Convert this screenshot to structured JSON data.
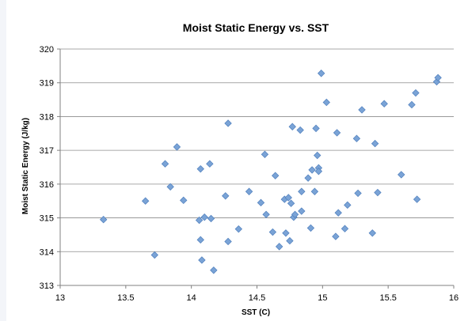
{
  "chart_data": {
    "type": "scatter",
    "title": "Moist Static Energy vs. SST",
    "xlabel": "SST (C)",
    "ylabel": "Moist Static Energy (J/kg)",
    "xlim": [
      13,
      16
    ],
    "ylim": [
      313,
      320
    ],
    "xticks": [
      "13",
      "13.5",
      "14",
      "14.5",
      "15",
      "15.5",
      "16"
    ],
    "yticks": [
      "313",
      "314",
      "315",
      "316",
      "317",
      "318",
      "319",
      "320"
    ],
    "grid": "horizontal",
    "legend": "none",
    "marker": "diamond",
    "marker_color": "#7aa3d6",
    "points": [
      [
        13.33,
        314.95
      ],
      [
        13.65,
        315.5
      ],
      [
        13.72,
        313.9
      ],
      [
        13.8,
        316.6
      ],
      [
        13.84,
        315.92
      ],
      [
        13.89,
        317.1
      ],
      [
        13.94,
        315.52
      ],
      [
        14.06,
        314.93
      ],
      [
        14.07,
        316.45
      ],
      [
        14.07,
        314.35
      ],
      [
        14.08,
        313.75
      ],
      [
        14.1,
        315.02
      ],
      [
        14.14,
        316.6
      ],
      [
        14.15,
        314.98
      ],
      [
        14.17,
        313.45
      ],
      [
        14.26,
        315.65
      ],
      [
        14.28,
        317.8
      ],
      [
        14.28,
        314.3
      ],
      [
        14.36,
        314.67
      ],
      [
        14.44,
        315.78
      ],
      [
        14.53,
        315.45
      ],
      [
        14.56,
        316.88
      ],
      [
        14.57,
        315.1
      ],
      [
        14.62,
        314.58
      ],
      [
        14.64,
        316.25
      ],
      [
        14.67,
        314.15
      ],
      [
        14.71,
        315.55
      ],
      [
        14.72,
        314.55
      ],
      [
        14.74,
        315.6
      ],
      [
        14.75,
        314.32
      ],
      [
        14.76,
        315.43
      ],
      [
        14.77,
        317.7
      ],
      [
        14.78,
        315.02
      ],
      [
        14.79,
        315.1
      ],
      [
        14.83,
        317.6
      ],
      [
        14.84,
        315.2
      ],
      [
        14.84,
        315.78
      ],
      [
        14.89,
        316.18
      ],
      [
        14.91,
        314.7
      ],
      [
        14.92,
        316.42
      ],
      [
        14.94,
        315.78
      ],
      [
        14.95,
        317.65
      ],
      [
        14.96,
        316.85
      ],
      [
        14.97,
        316.48
      ],
      [
        14.97,
        316.38
      ],
      [
        14.99,
        319.28
      ],
      [
        15.03,
        318.42
      ],
      [
        15.1,
        314.45
      ],
      [
        15.11,
        317.52
      ],
      [
        15.12,
        315.15
      ],
      [
        15.17,
        314.68
      ],
      [
        15.19,
        315.38
      ],
      [
        15.26,
        317.35
      ],
      [
        15.27,
        315.73
      ],
      [
        15.3,
        318.2
      ],
      [
        15.38,
        314.55
      ],
      [
        15.4,
        317.2
      ],
      [
        15.42,
        315.75
      ],
      [
        15.47,
        318.38
      ],
      [
        15.6,
        316.28
      ],
      [
        15.68,
        318.35
      ],
      [
        15.71,
        318.7
      ],
      [
        15.72,
        315.55
      ],
      [
        15.87,
        319.03
      ],
      [
        15.88,
        319.15
      ]
    ]
  }
}
